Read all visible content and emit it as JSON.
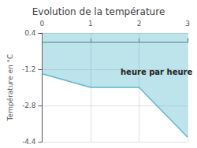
{
  "chart_data": {
    "type": "line",
    "title": "Evolution de la température",
    "ylabel": "Température en °C",
    "annotation": "heure par heure",
    "x": [
      0,
      1,
      2,
      3
    ],
    "values": [
      -1.4,
      -2.0,
      -2.0,
      -4.2
    ],
    "color": "#5bb8cc",
    "xlim": [
      0,
      3
    ],
    "ylim": [
      -4.4,
      0.4
    ],
    "xticks": [
      0,
      1,
      2,
      3
    ],
    "yticks": [
      0.4,
      -1.2,
      -2.8,
      -4.4
    ],
    "grid": true
  }
}
